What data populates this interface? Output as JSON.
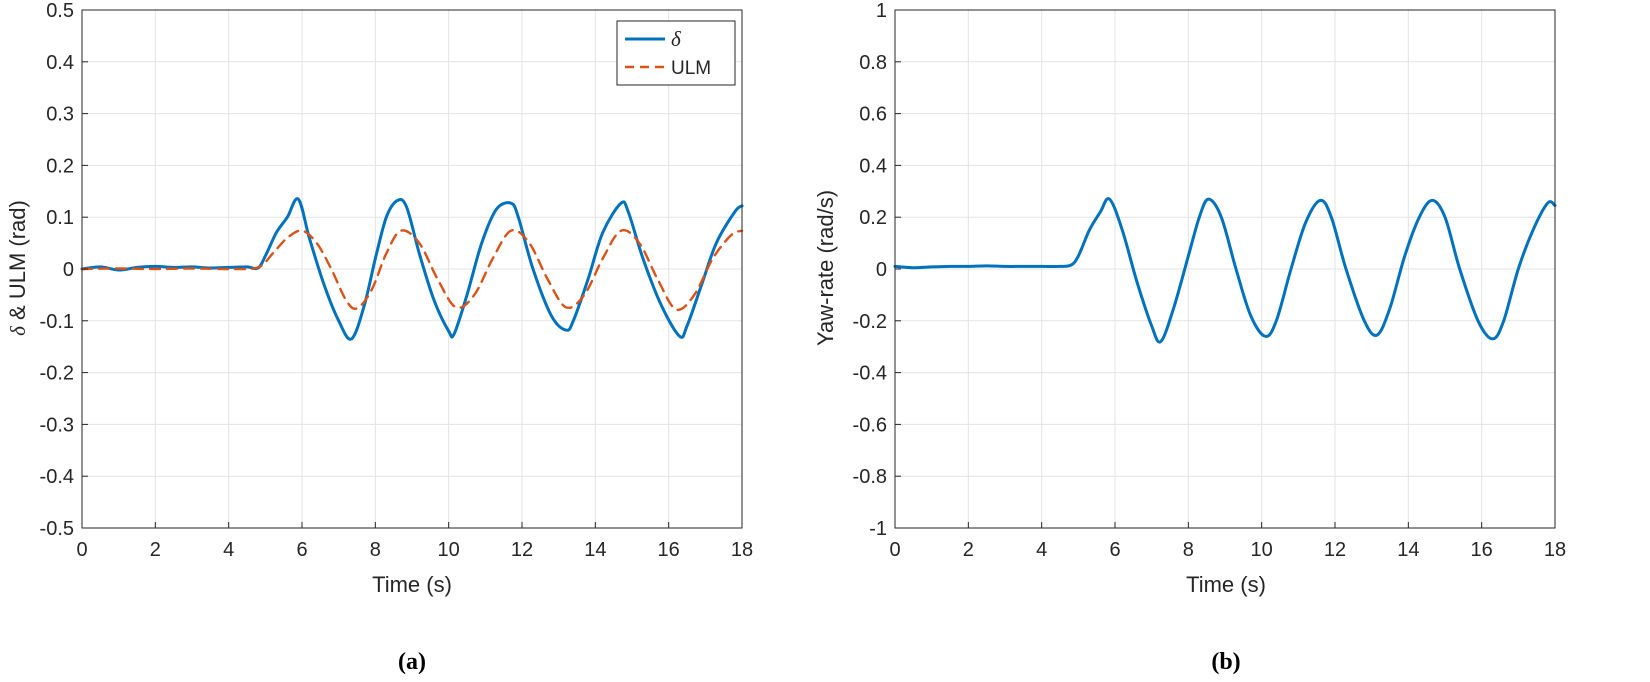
{
  "colors": {
    "series1": "#0072BD",
    "series2": "#D95319",
    "grid": "#e3e3e3",
    "axis": "#262626"
  },
  "chart_data": [
    {
      "type": "line",
      "caption": "(a)",
      "xlabel": "Time (s)",
      "ylabel_symbol": "δ",
      "ylabel": " & ULM (rad)",
      "xlim": [
        0,
        18
      ],
      "ylim": [
        -0.5,
        0.5
      ],
      "xticks": [
        0,
        2,
        4,
        6,
        8,
        10,
        12,
        14,
        16,
        18
      ],
      "yticks": [
        -0.5,
        -0.4,
        -0.3,
        -0.2,
        -0.1,
        0,
        0.1,
        0.2,
        0.3,
        0.4,
        0.5
      ],
      "ytick_labels": [
        "-0.5",
        "-0.4",
        "-0.3",
        "-0.2",
        "-0.1",
        "0",
        "0.1",
        "0.2",
        "0.3",
        "0.4",
        "0.5"
      ],
      "grid": true,
      "legend_position": "top-right",
      "series": [
        {
          "name": "δ",
          "style": "solid",
          "color": "#0072BD",
          "x": [
            0,
            0.5,
            1,
            1.5,
            2,
            2.5,
            3,
            3.5,
            4,
            4.5,
            4.8,
            5,
            5.3,
            5.6,
            5.9,
            6.2,
            6.6,
            7,
            7.35,
            7.7,
            8,
            8.3,
            8.6,
            8.85,
            9.2,
            9.6,
            10,
            10.15,
            10.5,
            10.9,
            11.3,
            11.7,
            11.9,
            12.3,
            12.8,
            13.2,
            13.4,
            13.8,
            14.2,
            14.7,
            14.9,
            15.3,
            15.8,
            16.3,
            16.5,
            16.9,
            17.3,
            17.8,
            18
          ],
          "values": [
            0,
            0.004,
            -0.002,
            0.003,
            0.005,
            0.003,
            0.004,
            0.002,
            0.003,
            0.004,
            0.002,
            0.025,
            0.07,
            0.1,
            0.135,
            0.06,
            -0.03,
            -0.1,
            -0.135,
            -0.07,
            0.02,
            0.1,
            0.132,
            0.12,
            0.03,
            -0.06,
            -0.12,
            -0.125,
            -0.05,
            0.05,
            0.115,
            0.127,
            0.1,
            0,
            -0.09,
            -0.118,
            -0.1,
            -0.02,
            0.07,
            0.127,
            0.11,
            0.02,
            -0.07,
            -0.13,
            -0.11,
            -0.03,
            0.05,
            0.11,
            0.122
          ]
        },
        {
          "name": "ULM",
          "style": "dashed",
          "color": "#D95319",
          "x": [
            0,
            1,
            2,
            3,
            4,
            4.8,
            5.2,
            5.6,
            6,
            6.4,
            6.8,
            7.2,
            7.5,
            7.9,
            8.3,
            8.7,
            9.2,
            9.7,
            10.2,
            10.7,
            11.2,
            11.7,
            12.2,
            12.7,
            13.2,
            13.7,
            14.2,
            14.7,
            15.2,
            15.7,
            16.2,
            16.7,
            17.2,
            17.7,
            18
          ],
          "values": [
            0,
            0.001,
            0,
            0.001,
            0,
            0.003,
            0.03,
            0.06,
            0.074,
            0.05,
            0.0,
            -0.06,
            -0.076,
            -0.04,
            0.03,
            0.074,
            0.05,
            -0.02,
            -0.074,
            -0.05,
            0.02,
            0.074,
            0.05,
            -0.02,
            -0.074,
            -0.05,
            0.02,
            0.074,
            0.05,
            -0.02,
            -0.078,
            -0.05,
            0.02,
            0.065,
            0.074
          ]
        }
      ]
    },
    {
      "type": "line",
      "caption": "(b)",
      "xlabel": "Time (s)",
      "ylabel": "Yaw-rate (rad/s)",
      "xlim": [
        0,
        18
      ],
      "ylim": [
        -1,
        1
      ],
      "xticks": [
        0,
        2,
        4,
        6,
        8,
        10,
        12,
        14,
        16,
        18
      ],
      "yticks": [
        -1,
        -0.8,
        -0.6,
        -0.4,
        -0.2,
        0,
        0.2,
        0.4,
        0.6,
        0.8,
        1
      ],
      "ytick_labels": [
        "-1",
        "-0.8",
        "-0.6",
        "-0.4",
        "-0.2",
        "0",
        "0.2",
        "0.4",
        "0.6",
        "0.8",
        "1"
      ],
      "grid": true,
      "series": [
        {
          "color": "#0072BD",
          "style": "solid",
          "x": [
            0,
            0.5,
            1,
            1.5,
            2,
            2.5,
            3,
            3.5,
            4,
            4.5,
            4.8,
            5,
            5.3,
            5.6,
            5.85,
            6.2,
            6.6,
            7,
            7.25,
            7.6,
            8,
            8.3,
            8.55,
            8.9,
            9.3,
            9.7,
            10.1,
            10.4,
            10.8,
            11.2,
            11.6,
            11.9,
            12.3,
            12.8,
            13.15,
            13.5,
            13.9,
            14.3,
            14.65,
            15,
            15.4,
            15.9,
            16.3,
            16.6,
            17,
            17.4,
            17.8,
            18
          ],
          "values": [
            0.01,
            0.005,
            0.008,
            0.01,
            0.01,
            0.012,
            0.01,
            0.01,
            0.01,
            0.01,
            0.015,
            0.05,
            0.15,
            0.22,
            0.27,
            0.15,
            -0.05,
            -0.22,
            -0.28,
            -0.15,
            0.05,
            0.2,
            0.27,
            0.2,
            0.0,
            -0.18,
            -0.26,
            -0.2,
            0.0,
            0.18,
            0.265,
            0.2,
            0.0,
            -0.2,
            -0.255,
            -0.15,
            0.05,
            0.2,
            0.265,
            0.2,
            0.0,
            -0.2,
            -0.27,
            -0.2,
            0.0,
            0.15,
            0.255,
            0.245
          ]
        }
      ]
    }
  ]
}
